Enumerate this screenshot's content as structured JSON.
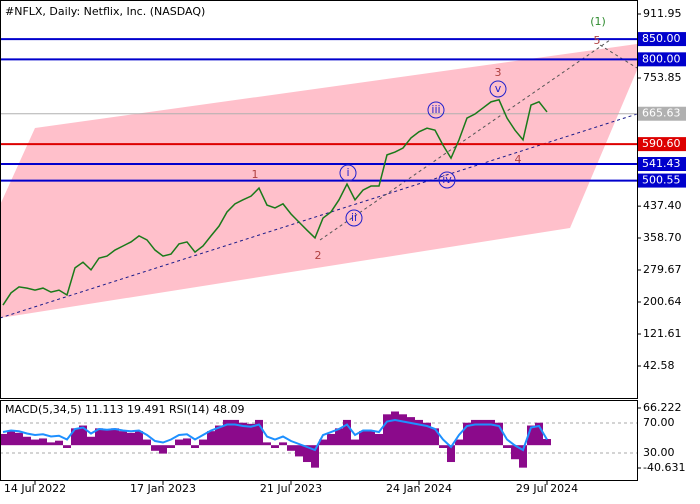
{
  "chart_data": [
    {
      "type": "line",
      "title": "#NFLX, Daily:  Netflix, Inc. (NASDAQ)",
      "categories": [
        null,
        null,
        null,
        null,
        "14 Jul 2022",
        null,
        null,
        null,
        null,
        null,
        null,
        null,
        null,
        null,
        null,
        null,
        null,
        null,
        null,
        null,
        "17 Jan 2023",
        null,
        null,
        null,
        null,
        null,
        null,
        null,
        null,
        null,
        null,
        null,
        null,
        null,
        null,
        null,
        "21 Jul 2023",
        null,
        null,
        null,
        null,
        null,
        null,
        null,
        null,
        null,
        null,
        null,
        null,
        null,
        null,
        null,
        "24 Jan 2024",
        null,
        null,
        null,
        null,
        null,
        null,
        null,
        null,
        null,
        null,
        null,
        null,
        null,
        null,
        null,
        "29 Jul 2024"
      ],
      "values": [
        193,
        223,
        238,
        235,
        230,
        235,
        225,
        230,
        218,
        285,
        299,
        280,
        309,
        314,
        329,
        339,
        349,
        364,
        354,
        329,
        314,
        319,
        344,
        349,
        324,
        339,
        364,
        388,
        423,
        443,
        453,
        462,
        482,
        440,
        433,
        443,
        418,
        398,
        378,
        359,
        408,
        423,
        453,
        492,
        453,
        477,
        487,
        487,
        564,
        571,
        581,
        606,
        621,
        630,
        625,
        588,
        556,
        601,
        655,
        665,
        680,
        695,
        700,
        655,
        625,
        601,
        687,
        695,
        670
      ],
      "color": "#1a7a1a",
      "ylim": [
        -36.45,
        946.53
      ],
      "yticks": [
        911.95,
        753.85,
        {
          "value": 437.4,
          "label": "437.40"
        },
        {
          "value": 358.7,
          "label": "358.70"
        },
        279.67,
        200.64,
        121.61,
        42.58
      ],
      "levels": [
        {
          "value": 850,
          "label": "850.00",
          "color": "#0000cc"
        },
        {
          "value": 800,
          "label": "800.00",
          "color": "#0000cc"
        },
        {
          "value": 665.63,
          "label": "665.63",
          "color": "#b0b0b0"
        },
        {
          "value": 590.6,
          "label": "590.60",
          "color": "#dd0000"
        },
        {
          "value": 541.43,
          "label": "541.43",
          "color": "#0000cc"
        },
        {
          "value": 500.55,
          "label": "500.55",
          "color": "#0000cc"
        }
      ],
      "wave_labels": [
        "1",
        "2",
        "3",
        "4",
        "5",
        "(1)",
        "i",
        "ii",
        "iii",
        "iv",
        "v"
      ]
    },
    {
      "type": "oscillator",
      "title": "MACD(5,34,5) 11.113 19.491 RSI(14) 48.09",
      "series": [
        {
          "values": [
            20,
            25,
            22,
            15,
            10,
            12,
            5,
            8,
            -5,
            30,
            35,
            15,
            30,
            28,
            30,
            25,
            22,
            25,
            10,
            -10,
            -15,
            -5,
            10,
            12,
            -5,
            10,
            25,
            35,
            45,
            45,
            40,
            38,
            45,
            5,
            -5,
            5,
            -10,
            -20,
            -30,
            -40,
            10,
            20,
            30,
            45,
            10,
            25,
            25,
            20,
            55,
            60,
            55,
            50,
            45,
            40,
            30,
            -5,
            -30,
            10,
            40,
            45,
            45,
            45,
            40,
            -5,
            -25,
            -40,
            35,
            40,
            11
          ],
          "color": "#8b0a8b"
        },
        {
          "values": [
            58,
            60,
            59,
            56,
            54,
            55,
            52,
            53,
            48,
            62,
            64,
            56,
            62,
            61,
            62,
            60,
            59,
            60,
            54,
            46,
            44,
            48,
            54,
            55,
            48,
            54,
            60,
            64,
            68,
            68,
            66,
            65,
            68,
            52,
            48,
            52,
            46,
            42,
            38,
            34,
            54,
            58,
            62,
            68,
            54,
            60,
            60,
            58,
            72,
            74,
            72,
            70,
            68,
            66,
            62,
            48,
            38,
            54,
            66,
            68,
            68,
            68,
            66,
            48,
            40,
            34,
            64,
            66,
            48
          ],
          "color": "#1e90ff",
          "axis": "y2"
        }
      ],
      "ylim": [
        -62.0,
        80.47
      ],
      "yticks": [
        66.222,
        -40.631
      ],
      "y2lim": [
        -6,
        100.67
      ],
      "y2ticks": [
        {
          "value": 70,
          "label": "70.00"
        },
        {
          "value": 30,
          "label": "30.00"
        }
      ]
    }
  ]
}
